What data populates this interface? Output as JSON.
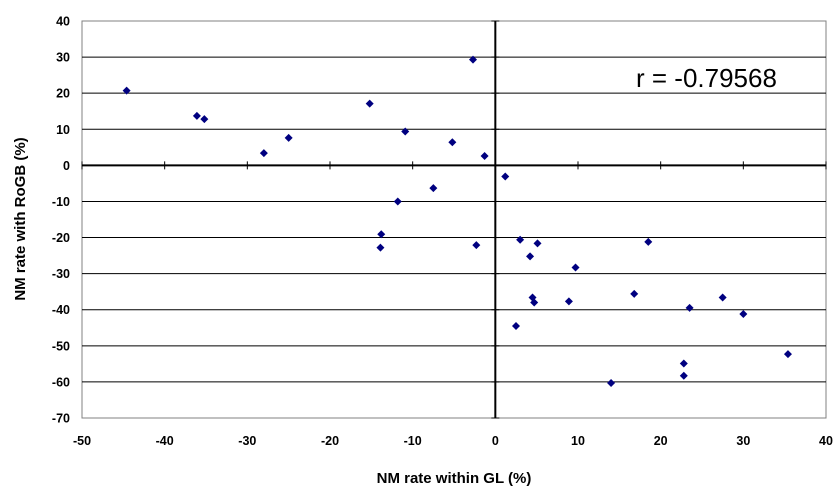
{
  "chart_data": {
    "type": "scatter",
    "title": "",
    "xlabel": "NM rate within GL (%)",
    "ylabel": "NM rate with RoGB (%)",
    "xlim": [
      -50,
      40
    ],
    "ylim": [
      -70,
      40
    ],
    "x_ticks": [
      "-50",
      "-40",
      "-30",
      "-20",
      "-10",
      "0",
      "10",
      "20",
      "30",
      "40"
    ],
    "y_ticks": [
      "40",
      "30",
      "20",
      "10",
      "0",
      "-10",
      "-20",
      "-30",
      "-40",
      "-50",
      "-60",
      "-70"
    ],
    "grid": "horizontal",
    "legend": "none",
    "annotation": "r = -0.79568",
    "marker_color": "#000080",
    "series": [
      {
        "x": [
          -44.6,
          -36.1,
          -35.2,
          -28.0,
          -25.0,
          -15.2,
          -10.9,
          -5.2,
          -2.7,
          -1.3,
          -11.8,
          -13.8,
          -13.9,
          -7.5,
          -2.3,
          1.2,
          3.0,
          4.2,
          4.5,
          4.7,
          5.1,
          2.5,
          8.9,
          9.7,
          16.8,
          18.5,
          14.0,
          22.8,
          22.8,
          23.5,
          27.5,
          30.0,
          35.4
        ],
        "y": [
          20.7,
          13.7,
          12.8,
          3.4,
          7.6,
          17.1,
          9.4,
          6.4,
          29.3,
          2.6,
          -10.0,
          -19.1,
          -22.8,
          -6.3,
          -22.1,
          -3.1,
          -20.6,
          -25.2,
          -36.6,
          -38.0,
          -21.6,
          -44.5,
          -37.7,
          -28.3,
          -35.6,
          -21.2,
          -60.3,
          -54.9,
          -58.3,
          -39.5,
          -36.6,
          -41.2,
          -52.3
        ]
      }
    ]
  }
}
